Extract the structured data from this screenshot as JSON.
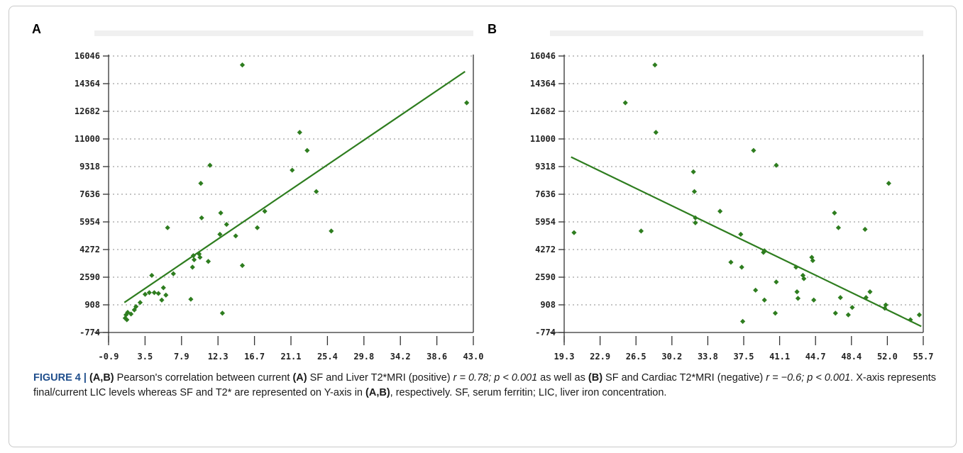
{
  "figure": {
    "panel_a_letter": "A",
    "panel_b_letter": "B",
    "caption": {
      "figure_label": "FIGURE 4 |",
      "panels_bold": "(A,B)",
      "text_1": " Pearson's correlation between current ",
      "a_bold": "(A)",
      "text_2": " SF and Liver T2*MRI (positive) ",
      "stat_a": "r = 0.78; p < 0.001",
      "text_3": " as well as ",
      "b_bold": "(B)",
      "text_4": " SF and Cardiac T2*MRI (negative) ",
      "stat_b": "r = −0.6; p < 0.001",
      "text_5": ". X-axis represents final/current LIC levels whereas SF and T2* are represented on Y-axis in ",
      "ab_bold": "(A,B)",
      "text_6": ", respectively. SF, serum ferritin; LIC, liver iron concentration."
    }
  },
  "colors": {
    "series": "#2e7d1f",
    "axis": "#333333",
    "grid": "#8a8a8a"
  },
  "chart_data": [
    {
      "type": "scatter",
      "title": "",
      "xlabel": "",
      "ylabel": "",
      "xlim": [
        -0.9,
        43.0
      ],
      "ylim": [
        -774,
        16046
      ],
      "x_ticks": [
        "-0.9",
        "3.5",
        "7.9",
        "12.3",
        "16.7",
        "21.1",
        "25.4",
        "29.8",
        "34.2",
        "38.6",
        "43.0"
      ],
      "y_ticks": [
        "-774",
        "908",
        "2590",
        "4272",
        "5954",
        "7636",
        "9318",
        "11000",
        "12682",
        "14364",
        "16046"
      ],
      "grid": true,
      "points": [
        [
          1.1,
          100
        ],
        [
          1.2,
          300
        ],
        [
          1.4,
          450
        ],
        [
          1.3,
          0
        ],
        [
          1.8,
          350
        ],
        [
          2.2,
          600
        ],
        [
          2.4,
          800
        ],
        [
          2.9,
          1050
        ],
        [
          3.5,
          1550
        ],
        [
          4.0,
          1650
        ],
        [
          4.3,
          2700
        ],
        [
          4.6,
          1650
        ],
        [
          5.1,
          1600
        ],
        [
          5.5,
          1200
        ],
        [
          5.7,
          1950
        ],
        [
          6.0,
          1500
        ],
        [
          6.2,
          5600
        ],
        [
          6.9,
          2800
        ],
        [
          9.0,
          1250
        ],
        [
          9.2,
          3200
        ],
        [
          9.3,
          3900
        ],
        [
          9.4,
          3650
        ],
        [
          10.0,
          4000
        ],
        [
          10.1,
          3800
        ],
        [
          10.2,
          8300
        ],
        [
          10.3,
          6200
        ],
        [
          11.1,
          3550
        ],
        [
          11.3,
          9400
        ],
        [
          12.5,
          5200
        ],
        [
          12.6,
          6500
        ],
        [
          12.8,
          400
        ],
        [
          13.3,
          5800
        ],
        [
          14.4,
          5100
        ],
        [
          15.2,
          3300
        ],
        [
          15.2,
          15500
        ],
        [
          17.0,
          5600
        ],
        [
          17.9,
          6600
        ],
        [
          21.2,
          9100
        ],
        [
          22.1,
          11400
        ],
        [
          23.0,
          10300
        ],
        [
          24.1,
          7800
        ],
        [
          25.9,
          5400
        ],
        [
          42.2,
          13200
        ]
      ],
      "trendline": [
        [
          1.0,
          1050
        ],
        [
          42.0,
          15100
        ]
      ]
    },
    {
      "type": "scatter",
      "title": "",
      "xlabel": "",
      "ylabel": "",
      "xlim": [
        19.3,
        55.7
      ],
      "ylim": [
        -774,
        16046
      ],
      "x_ticks": [
        "19.3",
        "22.9",
        "26.5",
        "30.2",
        "33.8",
        "37.5",
        "41.1",
        "44.7",
        "48.4",
        "52.0",
        "55.7"
      ],
      "y_ticks": [
        "-774",
        "908",
        "2590",
        "4272",
        "5954",
        "7636",
        "9318",
        "11000",
        "12682",
        "14364",
        "16046"
      ],
      "grid": true,
      "points": [
        [
          20.3,
          5300
        ],
        [
          25.5,
          13200
        ],
        [
          27.1,
          5400
        ],
        [
          28.5,
          15500
        ],
        [
          28.6,
          11400
        ],
        [
          32.4,
          9000
        ],
        [
          32.5,
          7800
        ],
        [
          32.6,
          6200
        ],
        [
          32.6,
          5900
        ],
        [
          35.1,
          6600
        ],
        [
          36.2,
          3500
        ],
        [
          37.2,
          5200
        ],
        [
          37.3,
          3200
        ],
        [
          37.4,
          -100
        ],
        [
          38.5,
          10300
        ],
        [
          38.7,
          1800
        ],
        [
          39.5,
          4100
        ],
        [
          39.6,
          4200
        ],
        [
          39.6,
          1200
        ],
        [
          40.8,
          9400
        ],
        [
          40.8,
          2300
        ],
        [
          40.7,
          400
        ],
        [
          42.8,
          3200
        ],
        [
          42.9,
          1700
        ],
        [
          43.0,
          1300
        ],
        [
          43.5,
          2700
        ],
        [
          43.6,
          2500
        ],
        [
          44.4,
          3800
        ],
        [
          44.5,
          3600
        ],
        [
          44.6,
          1200
        ],
        [
          46.7,
          6500
        ],
        [
          46.8,
          400
        ],
        [
          47.1,
          5600
        ],
        [
          47.3,
          1350
        ],
        [
          48.1,
          300
        ],
        [
          48.5,
          750
        ],
        [
          49.8,
          5500
        ],
        [
          49.9,
          1350
        ],
        [
          50.3,
          1700
        ],
        [
          51.8,
          700
        ],
        [
          51.9,
          900
        ],
        [
          52.2,
          8300
        ],
        [
          54.4,
          0
        ],
        [
          55.3,
          300
        ]
      ],
      "trendline": [
        [
          20.0,
          9900
        ],
        [
          55.5,
          -400
        ]
      ]
    }
  ]
}
